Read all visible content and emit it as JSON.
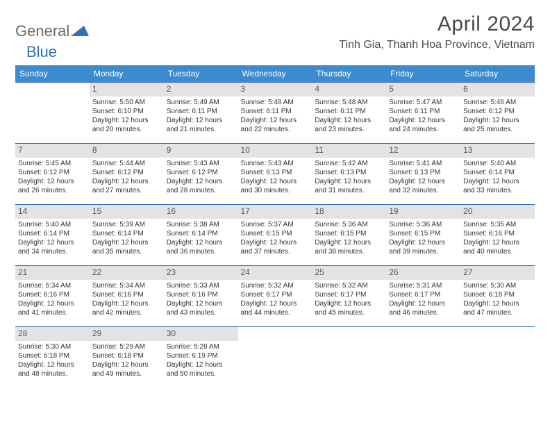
{
  "logo": {
    "text1": "General",
    "text2": "Blue",
    "tri_color": "#2f6fb3"
  },
  "title": "April 2024",
  "location": "Tinh Gia, Thanh Hoa Province, Vietnam",
  "colors": {
    "header_bg": "#3b8bce",
    "header_text": "#ffffff",
    "row_border": "#2f6fb3",
    "daynum_bg": "#e3e3e3",
    "daynum_text": "#595959",
    "body_text": "#323232"
  },
  "weekdays": [
    "Sunday",
    "Monday",
    "Tuesday",
    "Wednesday",
    "Thursday",
    "Friday",
    "Saturday"
  ],
  "weeks": [
    [
      null,
      {
        "n": "1",
        "sr": "5:50 AM",
        "ss": "6:10 PM",
        "dl": "12 hours and 20 minutes."
      },
      {
        "n": "2",
        "sr": "5:49 AM",
        "ss": "6:11 PM",
        "dl": "12 hours and 21 minutes."
      },
      {
        "n": "3",
        "sr": "5:48 AM",
        "ss": "6:11 PM",
        "dl": "12 hours and 22 minutes."
      },
      {
        "n": "4",
        "sr": "5:48 AM",
        "ss": "6:11 PM",
        "dl": "12 hours and 23 minutes."
      },
      {
        "n": "5",
        "sr": "5:47 AM",
        "ss": "6:11 PM",
        "dl": "12 hours and 24 minutes."
      },
      {
        "n": "6",
        "sr": "5:46 AM",
        "ss": "6:12 PM",
        "dl": "12 hours and 25 minutes."
      }
    ],
    [
      {
        "n": "7",
        "sr": "5:45 AM",
        "ss": "6:12 PM",
        "dl": "12 hours and 26 minutes."
      },
      {
        "n": "8",
        "sr": "5:44 AM",
        "ss": "6:12 PM",
        "dl": "12 hours and 27 minutes."
      },
      {
        "n": "9",
        "sr": "5:43 AM",
        "ss": "6:12 PM",
        "dl": "12 hours and 28 minutes."
      },
      {
        "n": "10",
        "sr": "5:43 AM",
        "ss": "6:13 PM",
        "dl": "12 hours and 30 minutes."
      },
      {
        "n": "11",
        "sr": "5:42 AM",
        "ss": "6:13 PM",
        "dl": "12 hours and 31 minutes."
      },
      {
        "n": "12",
        "sr": "5:41 AM",
        "ss": "6:13 PM",
        "dl": "12 hours and 32 minutes."
      },
      {
        "n": "13",
        "sr": "5:40 AM",
        "ss": "6:14 PM",
        "dl": "12 hours and 33 minutes."
      }
    ],
    [
      {
        "n": "14",
        "sr": "5:40 AM",
        "ss": "6:14 PM",
        "dl": "12 hours and 34 minutes."
      },
      {
        "n": "15",
        "sr": "5:39 AM",
        "ss": "6:14 PM",
        "dl": "12 hours and 35 minutes."
      },
      {
        "n": "16",
        "sr": "5:38 AM",
        "ss": "6:14 PM",
        "dl": "12 hours and 36 minutes."
      },
      {
        "n": "17",
        "sr": "5:37 AM",
        "ss": "6:15 PM",
        "dl": "12 hours and 37 minutes."
      },
      {
        "n": "18",
        "sr": "5:36 AM",
        "ss": "6:15 PM",
        "dl": "12 hours and 38 minutes."
      },
      {
        "n": "19",
        "sr": "5:36 AM",
        "ss": "6:15 PM",
        "dl": "12 hours and 39 minutes."
      },
      {
        "n": "20",
        "sr": "5:35 AM",
        "ss": "6:16 PM",
        "dl": "12 hours and 40 minutes."
      }
    ],
    [
      {
        "n": "21",
        "sr": "5:34 AM",
        "ss": "6:16 PM",
        "dl": "12 hours and 41 minutes."
      },
      {
        "n": "22",
        "sr": "5:34 AM",
        "ss": "6:16 PM",
        "dl": "12 hours and 42 minutes."
      },
      {
        "n": "23",
        "sr": "5:33 AM",
        "ss": "6:16 PM",
        "dl": "12 hours and 43 minutes."
      },
      {
        "n": "24",
        "sr": "5:32 AM",
        "ss": "6:17 PM",
        "dl": "12 hours and 44 minutes."
      },
      {
        "n": "25",
        "sr": "5:32 AM",
        "ss": "6:17 PM",
        "dl": "12 hours and 45 minutes."
      },
      {
        "n": "26",
        "sr": "5:31 AM",
        "ss": "6:17 PM",
        "dl": "12 hours and 46 minutes."
      },
      {
        "n": "27",
        "sr": "5:30 AM",
        "ss": "6:18 PM",
        "dl": "12 hours and 47 minutes."
      }
    ],
    [
      {
        "n": "28",
        "sr": "5:30 AM",
        "ss": "6:18 PM",
        "dl": "12 hours and 48 minutes."
      },
      {
        "n": "29",
        "sr": "5:29 AM",
        "ss": "6:18 PM",
        "dl": "12 hours and 49 minutes."
      },
      {
        "n": "30",
        "sr": "5:28 AM",
        "ss": "6:19 PM",
        "dl": "12 hours and 50 minutes."
      },
      null,
      null,
      null,
      null
    ]
  ],
  "labels": {
    "sunrise": "Sunrise:",
    "sunset": "Sunset:",
    "daylight": "Daylight:"
  }
}
